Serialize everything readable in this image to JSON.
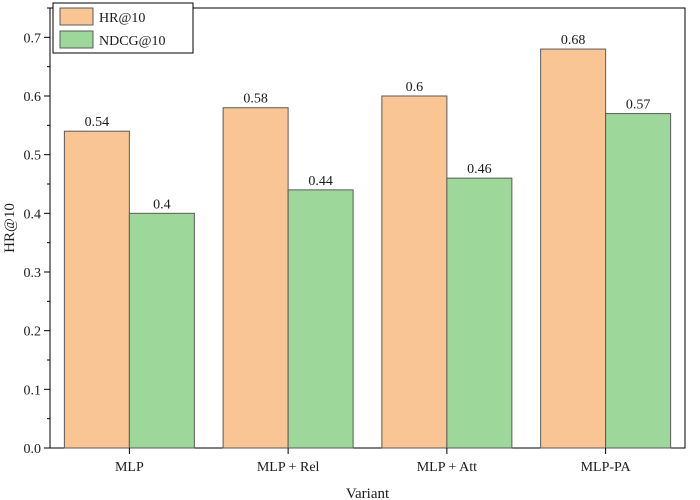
{
  "chart_data": {
    "type": "bar",
    "xlabel": "Variant",
    "ylabel": "HR@10",
    "categories": [
      "MLP",
      "MLP + Rel",
      "MLP + Att",
      "MLP-PA"
    ],
    "series": [
      {
        "name": "HR@10",
        "values": [
          0.54,
          0.58,
          0.6,
          0.68
        ],
        "labels": [
          "0.54",
          "0.58",
          "0.6",
          "0.68"
        ],
        "color": "#F9C594"
      },
      {
        "name": "NDCG@10",
        "values": [
          0.4,
          0.44,
          0.46,
          0.57
        ],
        "labels": [
          "0.4",
          "0.44",
          "0.46",
          "0.57"
        ],
        "color": "#9ED79A"
      }
    ],
    "ylim": [
      0,
      0.75
    ],
    "yticks": [
      0,
      0.1,
      0.2,
      0.3,
      0.4,
      0.5,
      0.6,
      0.7
    ],
    "ytick_labels": [
      "0.0",
      "0.1",
      "0.2",
      "0.3",
      "0.4",
      "0.5",
      "0.6",
      "0.7"
    ],
    "legend_position": "top-left",
    "grid": false
  }
}
